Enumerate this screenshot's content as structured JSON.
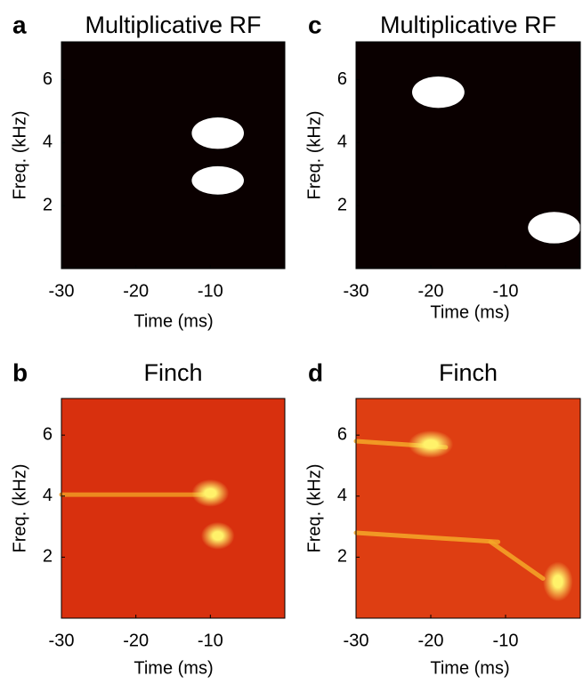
{
  "chart_data": [
    {
      "type": "heatmap",
      "panel_label": "a",
      "title": "Multiplicative RF",
      "xlabel": "Time (ms)",
      "ylabel": "Freq. (kHz)",
      "background": "#0a0000",
      "spot_color": "#ffffff",
      "xlim": [
        -30,
        0
      ],
      "ylim": [
        0,
        7.2
      ],
      "xticks": [
        -30,
        -20,
        -10
      ],
      "yticks": [
        2,
        4,
        6
      ],
      "spots": [
        {
          "x": -9,
          "y": 4.3,
          "width": 7,
          "height": 1
        },
        {
          "x": -9,
          "y": 2.8,
          "width": 7,
          "height": 0.9
        }
      ],
      "streaks": []
    },
    {
      "type": "heatmap",
      "panel_label": "b",
      "title": "Finch",
      "xlabel": "Time (ms)",
      "ylabel": "Freq. (kHz)",
      "background": "#d8300e",
      "spot_color": "#fff26a",
      "streak_color": "#f09a22",
      "xlim": [
        -30,
        0
      ],
      "ylim": [
        0,
        7.2
      ],
      "xticks": [
        -30,
        -20,
        -10
      ],
      "yticks": [
        2,
        4,
        6
      ],
      "spots": [
        {
          "x": -10,
          "y": 4.1,
          "width": 5,
          "height": 0.9
        },
        {
          "x": -9,
          "y": 2.7,
          "width": 4.5,
          "height": 0.9
        }
      ],
      "streaks": [
        {
          "x": [
            -30,
            -11
          ],
          "y": [
            4.05,
            4.05
          ]
        }
      ]
    },
    {
      "type": "heatmap",
      "panel_label": "c",
      "title": "Multiplicative RF",
      "xlabel": "Time (ms)",
      "ylabel": "Freq. (kHz)",
      "background": "#0a0000",
      "spot_color": "#ffffff",
      "xlim": [
        -30,
        0
      ],
      "ylim": [
        0,
        7.2
      ],
      "xticks": [
        -30,
        -20,
        -10
      ],
      "yticks": [
        2,
        4,
        6
      ],
      "spots": [
        {
          "x": -19,
          "y": 5.6,
          "width": 7,
          "height": 1
        },
        {
          "x": -3.5,
          "y": 1.3,
          "width": 7,
          "height": 1
        }
      ],
      "streaks": []
    },
    {
      "type": "heatmap",
      "panel_label": "d",
      "title": "Finch",
      "xlabel": "Time (ms)",
      "ylabel": "Freq. (kHz)",
      "background": "#de3e12",
      "spot_color": "#fff26a",
      "streak_color": "#f5a828",
      "xlim": [
        -30,
        0
      ],
      "ylim": [
        0,
        7.2
      ],
      "xticks": [
        -30,
        -20,
        -10
      ],
      "yticks": [
        2,
        4,
        6
      ],
      "spots": [
        {
          "x": -20,
          "y": 5.7,
          "width": 6,
          "height": 0.9
        },
        {
          "x": -3,
          "y": 1.2,
          "width": 4,
          "height": 1.3
        }
      ],
      "streaks": [
        {
          "x": [
            -30,
            -18
          ],
          "y": [
            5.8,
            5.6
          ]
        },
        {
          "x": [
            -30,
            -11
          ],
          "y": [
            2.8,
            2.5
          ]
        },
        {
          "x": [
            -12,
            -5
          ],
          "y": [
            2.5,
            1.3
          ]
        }
      ]
    }
  ]
}
